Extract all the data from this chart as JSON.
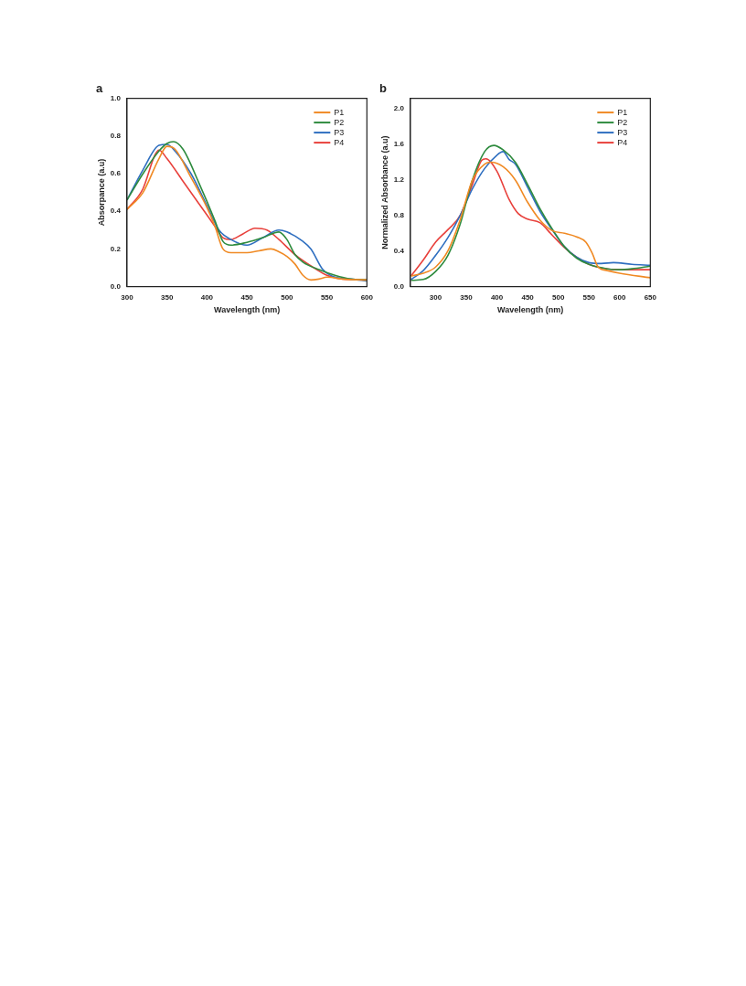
{
  "chart_data": [
    {
      "type": "line",
      "title": "a",
      "xlabel": "Wavelength (nm)",
      "ylabel": "Absorpance (a.u)",
      "xlim": [
        300,
        600
      ],
      "xticks": [
        300,
        350,
        400,
        450,
        500,
        550,
        600
      ],
      "ylim": [
        0,
        1
      ],
      "yticks": [
        {
          "value": 0,
          "label": "0.0"
        },
        0.2,
        0.4,
        0.6,
        0.8,
        {
          "value": 1,
          "label": "1.0"
        }
      ],
      "grid": false,
      "legend": "top right",
      "series": [
        {
          "name": "P1",
          "color": "#f08a24",
          "x": [
            300,
            320,
            340,
            350,
            360,
            380,
            400,
            410,
            420,
            430,
            450,
            465,
            480,
            490,
            500,
            510,
            520,
            530,
            540,
            550,
            570,
            600
          ],
          "values": [
            0.41,
            0.5,
            0.68,
            0.745,
            0.73,
            0.58,
            0.42,
            0.32,
            0.2,
            0.18,
            0.18,
            0.19,
            0.2,
            0.185,
            0.16,
            0.12,
            0.06,
            0.035,
            0.04,
            0.05,
            0.04,
            0.035
          ]
        },
        {
          "name": "P2",
          "color": "#2e8b3e",
          "x": [
            300,
            320,
            340,
            350,
            358,
            370,
            390,
            410,
            420,
            430,
            450,
            470,
            490,
            500,
            510,
            520,
            540,
            560,
            580,
            600
          ],
          "values": [
            0.46,
            0.6,
            0.72,
            0.76,
            0.77,
            0.73,
            0.55,
            0.35,
            0.24,
            0.22,
            0.235,
            0.26,
            0.29,
            0.25,
            0.17,
            0.13,
            0.09,
            0.06,
            0.04,
            0.035
          ]
        },
        {
          "name": "P3",
          "color": "#2f6fc0",
          "x": [
            300,
            320,
            340,
            350,
            360,
            380,
            400,
            415,
            430,
            450,
            470,
            490,
            500,
            520,
            530,
            545,
            560,
            580,
            600
          ],
          "values": [
            0.46,
            0.62,
            0.75,
            0.755,
            0.72,
            0.6,
            0.43,
            0.3,
            0.25,
            0.22,
            0.26,
            0.3,
            0.29,
            0.24,
            0.2,
            0.09,
            0.05,
            0.04,
            0.03
          ]
        },
        {
          "name": "P4",
          "color": "#e8413c",
          "x": [
            300,
            320,
            335,
            340,
            350,
            370,
            390,
            410,
            420,
            430,
            445,
            460,
            475,
            490,
            510,
            530,
            550,
            570,
            600
          ],
          "values": [
            0.41,
            0.52,
            0.7,
            0.725,
            0.68,
            0.56,
            0.44,
            0.32,
            0.26,
            0.25,
            0.28,
            0.31,
            0.3,
            0.25,
            0.17,
            0.11,
            0.06,
            0.04,
            0.035
          ]
        }
      ]
    },
    {
      "type": "line",
      "title": "b",
      "xlabel": "Wavelength (nm)",
      "ylabel": "Normalized Absorbance (a.u)",
      "xlim": [
        259,
        650
      ],
      "xticks": [
        300,
        350,
        400,
        450,
        500,
        550,
        600,
        650
      ],
      "ylim": [
        0,
        2.12
      ],
      "yticks": [
        {
          "value": 0,
          "label": "0.0"
        },
        0.4,
        0.8,
        1.2,
        1.6,
        {
          "value": 2,
          "label": "2.0"
        }
      ],
      "grid": false,
      "legend": "top right",
      "series": [
        {
          "name": "P1",
          "color": "#f08a24",
          "x": [
            260,
            280,
            300,
            320,
            340,
            360,
            380,
            390,
            410,
            430,
            450,
            470,
            490,
            510,
            530,
            545,
            555,
            565,
            580,
            600,
            650
          ],
          "values": [
            0.12,
            0.15,
            0.22,
            0.4,
            0.75,
            1.2,
            1.38,
            1.4,
            1.35,
            1.2,
            0.95,
            0.75,
            0.63,
            0.6,
            0.56,
            0.5,
            0.38,
            0.22,
            0.18,
            0.15,
            0.1
          ]
        },
        {
          "name": "P2",
          "color": "#2e8b3e",
          "x": [
            260,
            280,
            300,
            320,
            340,
            360,
            380,
            395,
            410,
            430,
            450,
            470,
            490,
            510,
            530,
            550,
            580,
            600,
            620,
            650
          ],
          "values": [
            0.07,
            0.08,
            0.17,
            0.35,
            0.7,
            1.2,
            1.52,
            1.59,
            1.54,
            1.4,
            1.15,
            0.88,
            0.65,
            0.45,
            0.32,
            0.25,
            0.2,
            0.19,
            0.2,
            0.23
          ]
        },
        {
          "name": "P3",
          "color": "#2f6fc0",
          "x": [
            260,
            280,
            300,
            320,
            340,
            360,
            380,
            400,
            410,
            420,
            430,
            450,
            470,
            490,
            510,
            530,
            550,
            570,
            590,
            620,
            650
          ],
          "values": [
            0.08,
            0.18,
            0.35,
            0.55,
            0.8,
            1.1,
            1.33,
            1.48,
            1.52,
            1.43,
            1.38,
            1.12,
            0.85,
            0.64,
            0.45,
            0.33,
            0.27,
            0.26,
            0.27,
            0.25,
            0.24
          ]
        },
        {
          "name": "P4",
          "color": "#e8413c",
          "x": [
            260,
            280,
            300,
            320,
            340,
            360,
            375,
            382,
            400,
            420,
            435,
            450,
            470,
            490,
            510,
            530,
            550,
            570,
            600,
            650
          ],
          "values": [
            0.12,
            0.3,
            0.5,
            0.64,
            0.8,
            1.15,
            1.42,
            1.44,
            1.3,
            0.98,
            0.82,
            0.76,
            0.72,
            0.58,
            0.44,
            0.33,
            0.25,
            0.21,
            0.19,
            0.19
          ]
        }
      ]
    }
  ]
}
